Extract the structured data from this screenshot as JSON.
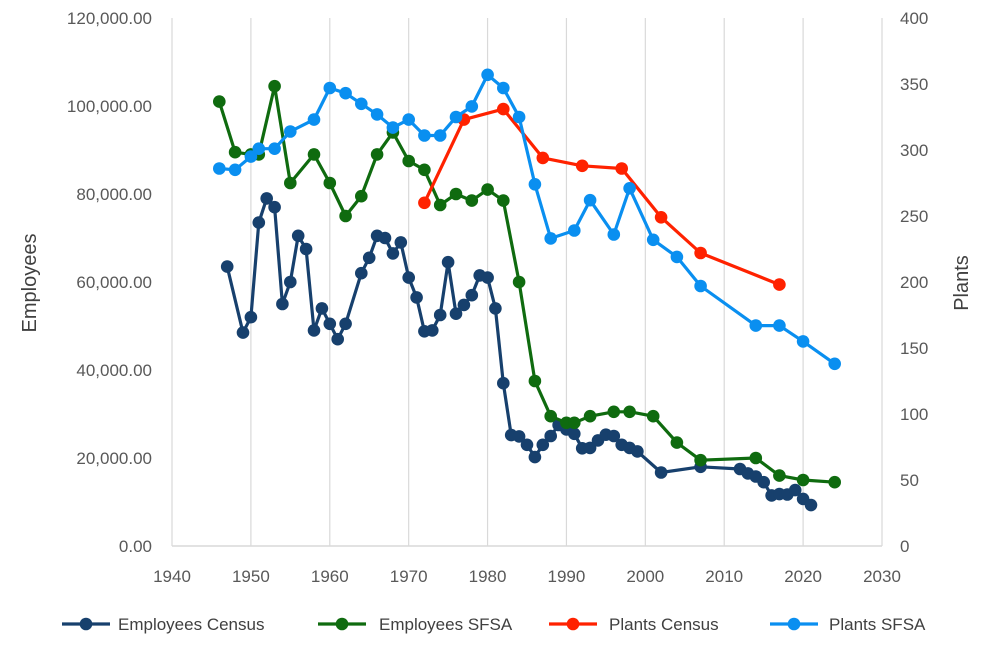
{
  "chart_data": {
    "type": "line",
    "title": "",
    "xlabel": "",
    "ylabel": "Employees",
    "y2label": "Plants",
    "xlim": [
      1940,
      2030
    ],
    "ylim": [
      0,
      120000
    ],
    "y2lim": [
      0,
      400
    ],
    "grid": "vertical",
    "legend": "bottom",
    "x_ticks": [
      "1940",
      "1950",
      "1960",
      "1970",
      "1980",
      "1990",
      "2000",
      "2010",
      "2020",
      "2030"
    ],
    "y_ticks": [
      "0.00",
      "20,000.00",
      "40,000.00",
      "60,000.00",
      "80,000.00",
      "100,000.00",
      "120,000.00"
    ],
    "y2_ticks": [
      "0",
      "50",
      "100",
      "150",
      "200",
      "250",
      "300",
      "350",
      "400"
    ],
    "series": [
      {
        "name": "Employees Census",
        "axis": "left",
        "color": "#17406d",
        "x": [
          1947,
          1949,
          1950,
          1951,
          1952,
          1953,
          1954,
          1955,
          1956,
          1957,
          1958,
          1959,
          1960,
          1961,
          1962,
          1964,
          1965,
          1966,
          1967,
          1968,
          1969,
          1970,
          1971,
          1972,
          1973,
          1974,
          1975,
          1976,
          1977,
          1978,
          1979,
          1980,
          1981,
          1982,
          1983,
          1984,
          1985,
          1986,
          1987,
          1988,
          1989,
          1990,
          1991,
          1992,
          1993,
          1994,
          1995,
          1996,
          1997,
          1998,
          1999,
          2002,
          2007,
          2012,
          2013,
          2014,
          2015,
          2016,
          2017,
          2018,
          2019,
          2020,
          2021
        ],
        "values": [
          63500,
          48500,
          52000,
          73500,
          79000,
          77000,
          55000,
          60000,
          70500,
          67500,
          49000,
          54000,
          50500,
          47000,
          50500,
          62000,
          65500,
          70500,
          70000,
          66500,
          69000,
          61000,
          56500,
          48800,
          49000,
          52500,
          64500,
          52800,
          54800,
          57000,
          61500,
          61000,
          54000,
          37000,
          25200,
          24900,
          23000,
          20200,
          23000,
          25000,
          27500,
          26500,
          25500,
          22200,
          22300,
          24000,
          25300,
          25000,
          23000,
          22300,
          21500,
          16700,
          18000,
          17500,
          16500,
          15800,
          14500,
          11500,
          11800,
          11700,
          12700,
          10700,
          9300
        ]
      },
      {
        "name": "Employees SFSA",
        "axis": "left",
        "color": "#0f6b0f",
        "x": [
          1946,
          1948,
          1950,
          1951,
          1953,
          1955,
          1958,
          1960,
          1962,
          1964,
          1966,
          1968,
          1970,
          1972,
          1974,
          1976,
          1978,
          1980,
          1982,
          1984,
          1986,
          1988,
          1990,
          1991,
          1993,
          1996,
          1998,
          2001,
          2004,
          2007,
          2014,
          2017,
          2020,
          2024
        ],
        "values": [
          101000,
          89500,
          89000,
          89000,
          104500,
          82500,
          89000,
          82500,
          75000,
          79500,
          89000,
          94000,
          87500,
          85500,
          77500,
          80000,
          78500,
          81000,
          78500,
          60000,
          37500,
          29500,
          28000,
          28000,
          29500,
          30500,
          30500,
          29500,
          23500,
          19500,
          20000,
          16000,
          15000,
          14500
        ]
      },
      {
        "name": "Plants Census",
        "axis": "right",
        "color": "#ff2200",
        "x": [
          1972,
          1977,
          1982,
          1987,
          1992,
          1997,
          2002,
          2007,
          2017
        ],
        "values": [
          260,
          323,
          331,
          294,
          288,
          286,
          249,
          222,
          198
        ]
      },
      {
        "name": "Plants SFSA",
        "axis": "right",
        "color": "#0a8ff0",
        "x": [
          1946,
          1948,
          1950,
          1951,
          1953,
          1955,
          1958,
          1960,
          1962,
          1964,
          1966,
          1968,
          1970,
          1972,
          1974,
          1976,
          1978,
          1980,
          1982,
          1984,
          1986,
          1988,
          1991,
          1993,
          1996,
          1998,
          2001,
          2004,
          2007,
          2014,
          2017,
          2020,
          2024
        ],
        "values": [
          286,
          285,
          295,
          301,
          301,
          314,
          323,
          347,
          343,
          335,
          327,
          317,
          323,
          311,
          311,
          325,
          333,
          357,
          347,
          325,
          274,
          233,
          239,
          262,
          236,
          271,
          232,
          219,
          197,
          167,
          167,
          155,
          138
        ]
      }
    ]
  }
}
